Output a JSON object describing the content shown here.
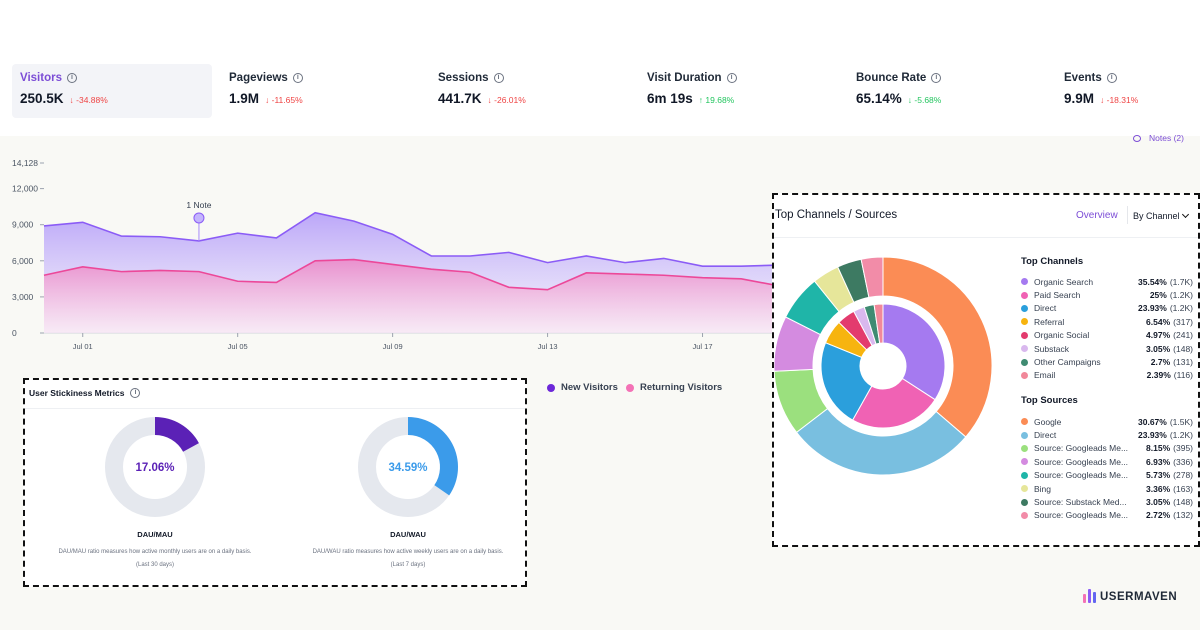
{
  "stats": [
    {
      "label": "Visitors",
      "value": "250.5K",
      "delta": "↓ -34.88%",
      "trend": "down",
      "active": true
    },
    {
      "label": "Pageviews",
      "value": "1.9M",
      "delta": "↓ -11.65%",
      "trend": "down",
      "active": false
    },
    {
      "label": "Sessions",
      "value": "441.7K",
      "delta": "↓ -26.01%",
      "trend": "down",
      "active": false
    },
    {
      "label": "Visit Duration",
      "value": "6m 19s",
      "delta": "↑ 19.68%",
      "trend": "up",
      "active": false
    },
    {
      "label": "Bounce Rate",
      "value": "65.14%",
      "delta": "↓ -5.68%",
      "trend": "up",
      "active": false
    },
    {
      "label": "Events",
      "value": "9.9M",
      "delta": "↓ -18.31%",
      "trend": "down",
      "active": false
    }
  ],
  "notes_link": "Notes (2)",
  "chart_data": {
    "type": "area",
    "y_ticks": [
      "14,128",
      "12,000",
      "9,000",
      "6,000",
      "3,000",
      "0"
    ],
    "ylim": [
      0,
      14128
    ],
    "x_tick_labels": [
      "Jul 01",
      "Jul 05",
      "Jul 09",
      "Jul 13",
      "Jul 17"
    ],
    "annotation": "1 Note",
    "series": [
      {
        "name": "New Visitors",
        "color": "#a78bfa",
        "line_color": "#8b5cf6",
        "values": [
          8900,
          9200,
          8050,
          8000,
          7650,
          8300,
          7900,
          10000,
          9300,
          8200,
          6400,
          6400,
          6700,
          5850,
          6400,
          5850,
          6200,
          5550,
          5550,
          5650
        ]
      },
      {
        "name": "Returning Visitors",
        "color": "#f9a8d4",
        "line_color": "#ec4899",
        "values": [
          4800,
          5500,
          5100,
          5200,
          5100,
          4300,
          4200,
          6000,
          6100,
          5700,
          5300,
          5050,
          3800,
          3600,
          5000,
          4900,
          4800,
          4600,
          4500,
          3900
        ]
      }
    ]
  },
  "legend": {
    "new": "New Visitors",
    "returning": "Returning Visitors",
    "new_color": "#6d28d9",
    "returning_color": "#f472b6"
  },
  "stickiness": {
    "title": "User Stickiness Metrics",
    "items": [
      {
        "percent_label": "17.06%",
        "value": 0.1706,
        "color": "#5b21b6",
        "title": "DAU/MAU",
        "desc": "DAU/MAU ratio measures how active monthly users are on a daily basis.",
        "period": "(Last 30 days)"
      },
      {
        "percent_label": "34.59%",
        "value": 0.3459,
        "color": "#3b9bea",
        "title": "DAU/WAU",
        "desc": "DAU/WAU ratio measures how active weekly users are on a daily basis.",
        "period": "(Last 7 days)"
      }
    ]
  },
  "top_channels": {
    "title": "Top Channels / Sources",
    "tab_overview": "Overview",
    "tab_by": "By Channel",
    "channels_heading": "Top Channels",
    "sources_heading": "Top Sources",
    "channels": [
      {
        "name": "Organic Search",
        "pct": "35.54%",
        "count": "(1.7K)",
        "value": 35.54,
        "color": "#a57af0"
      },
      {
        "name": "Paid Search",
        "pct": "25%",
        "count": "(1.2K)",
        "value": 25,
        "color": "#f062b4"
      },
      {
        "name": "Direct",
        "pct": "23.93%",
        "count": "(1.2K)",
        "value": 23.93,
        "color": "#2b9fdc"
      },
      {
        "name": "Referral",
        "pct": "6.54%",
        "count": "(317)",
        "value": 6.54,
        "color": "#f7b40f"
      },
      {
        "name": "Organic Social",
        "pct": "4.97%",
        "count": "(241)",
        "value": 4.97,
        "color": "#e33b6e"
      },
      {
        "name": "Substack",
        "pct": "3.05%",
        "count": "(148)",
        "value": 3.05,
        "color": "#d9b8ee"
      },
      {
        "name": "Other Campaigns",
        "pct": "2.7%",
        "count": "(131)",
        "value": 2.7,
        "color": "#3f8b72"
      },
      {
        "name": "Email",
        "pct": "2.39%",
        "count": "(116)",
        "value": 2.39,
        "color": "#f1889a"
      }
    ],
    "sources": [
      {
        "name": "Google",
        "pct": "30.67%",
        "count": "(1.5K)",
        "value": 30.67,
        "color": "#fb8c55"
      },
      {
        "name": "Direct",
        "pct": "23.93%",
        "count": "(1.2K)",
        "value": 23.93,
        "color": "#79bfe0"
      },
      {
        "name": "Source: Googleads Me...",
        "pct": "8.15%",
        "count": "(395)",
        "value": 8.15,
        "color": "#9be07e"
      },
      {
        "name": "Source: Googleads Me...",
        "pct": "6.93%",
        "count": "(336)",
        "value": 6.93,
        "color": "#d48be0"
      },
      {
        "name": "Source: Googleads Me...",
        "pct": "5.73%",
        "count": "(278)",
        "value": 5.73,
        "color": "#1fb5a8"
      },
      {
        "name": "Bing",
        "pct": "3.36%",
        "count": "(163)",
        "value": 3.36,
        "color": "#e6e69a"
      },
      {
        "name": "Source: Substack Med...",
        "pct": "3.05%",
        "count": "(148)",
        "value": 3.05,
        "color": "#3d7a62"
      },
      {
        "name": "Source: Googleads Me...",
        "pct": "2.72%",
        "count": "(132)",
        "value": 2.72,
        "color": "#f28ca8"
      }
    ]
  },
  "brand": {
    "name": "USERMAVEN",
    "bar_colors": [
      "#f472b6",
      "#8b5cf6",
      "#6366f1"
    ]
  }
}
